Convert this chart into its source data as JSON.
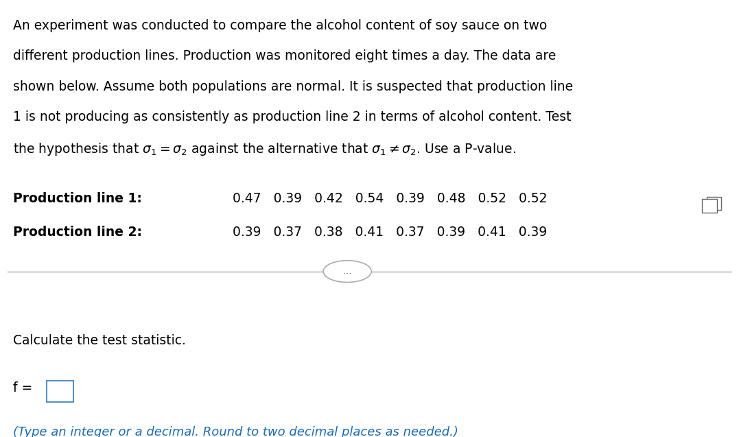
{
  "para_lines": [
    "An experiment was conducted to compare the alcohol content of soy sauce on two",
    "different production lines. Production was monitored eight times a day. The data are",
    "shown below. Assume both populations are normal. It is suspected that production line",
    "1 is not producing as consistently as production line 2 in terms of alcohol content. Test"
  ],
  "last_line": "the hypothesis that $\\sigma_1 = \\sigma_2$ against the alternative that $\\sigma_1 \\neq \\sigma_2$. Use a P-value.",
  "label1": "Production line 1:",
  "label2": "Production line 2:",
  "data1": "0.47   0.39   0.42   0.54   0.39   0.48   0.52   0.52",
  "data2": "0.39   0.37   0.38   0.41   0.37   0.39   0.41   0.39",
  "calc_label": "Calculate the test statistic.",
  "f_label": "f =",
  "note": "(Type an integer or a decimal. Round to two decimal places as needed.)",
  "bg_color": "#ffffff",
  "text_color": "#000000",
  "blue_color": "#1a6bb5",
  "gray_color": "#aaaaaa",
  "icon_color": "#666666",
  "font_size_para": 13.5,
  "font_size_note": 13.0
}
